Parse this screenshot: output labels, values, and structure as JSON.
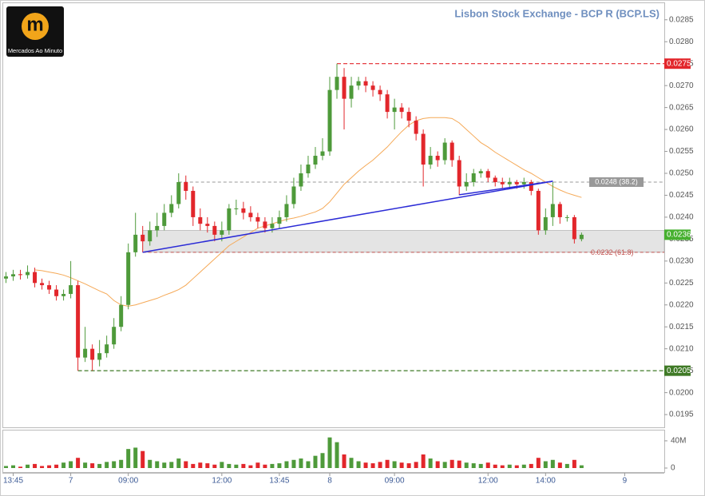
{
  "logo": {
    "letter": "m",
    "text": "Mercados Ao Minuto"
  },
  "chart_data": {
    "type": "candlestick",
    "title": "Lisbon Stock Exchange - BCP R (BCP.LS)",
    "categories": [
      null,
      "13:45",
      null,
      null,
      null,
      null,
      null,
      null,
      null,
      "7",
      null,
      null,
      null,
      null,
      null,
      null,
      null,
      "09:00",
      null,
      null,
      null,
      null,
      null,
      null,
      null,
      null,
      null,
      null,
      null,
      null,
      "12:00",
      null,
      null,
      null,
      null,
      null,
      null,
      null,
      "13:45",
      null,
      null,
      null,
      null,
      null,
      null,
      "8",
      null,
      null,
      null,
      null,
      null,
      null,
      null,
      null,
      "09:00",
      null,
      null,
      null,
      null,
      null,
      null,
      null,
      null,
      null,
      null,
      null,
      null,
      "12:00",
      null,
      null,
      null,
      null,
      null,
      null,
      null,
      "14:00",
      null,
      null,
      null,
      null,
      null,
      null,
      null,
      null,
      null,
      null,
      "9",
      null,
      null,
      null,
      null,
      null
    ],
    "open": [
      0.0226,
      0.02265,
      0.0227,
      0.02268,
      0.02275,
      0.0225,
      0.02245,
      0.02235,
      0.0222,
      0.02225,
      0.02245,
      0.0208,
      0.021,
      0.02075,
      0.0209,
      0.0211,
      0.0215,
      0.022,
      0.0232,
      0.0236,
      0.02345,
      0.0237,
      0.0238,
      0.0241,
      0.0243,
      0.0248,
      0.0246,
      0.024,
      0.02385,
      0.0238,
      0.0236,
      0.0237,
      0.0242,
      0.0242,
      0.0241,
      0.024,
      0.0239,
      0.02375,
      0.02385,
      0.024,
      0.0243,
      0.0247,
      0.025,
      0.0252,
      0.0254,
      0.0255,
      0.0269,
      0.0272,
      0.0267,
      0.027,
      0.0271,
      0.027,
      0.0269,
      0.0268,
      0.0264,
      0.0265,
      0.0264,
      0.0262,
      0.0259,
      0.0252,
      0.0254,
      0.0253,
      0.0257,
      0.0253,
      0.0247,
      0.0248,
      0.025,
      0.02505,
      0.0249,
      0.0248,
      0.02475,
      0.0248,
      0.02475,
      0.0248,
      0.0246,
      0.0237,
      0.024,
      0.0243,
      0.024,
      0.024,
      0.0235,
      null,
      null,
      null,
      null,
      null,
      null,
      null,
      null,
      null,
      null,
      null
    ],
    "high": [
      0.02275,
      0.0228,
      0.0228,
      0.0229,
      0.02285,
      0.0226,
      0.02255,
      0.02245,
      0.02235,
      0.023,
      0.02255,
      0.0215,
      0.0211,
      0.0212,
      0.0213,
      0.0217,
      0.0222,
      0.0234,
      0.0241,
      0.0238,
      0.0239,
      0.0241,
      0.0243,
      0.0245,
      0.025,
      0.02495,
      0.0247,
      0.0242,
      0.024,
      0.0239,
      0.0239,
      0.0243,
      0.0244,
      0.02435,
      0.02425,
      0.0241,
      0.024,
      0.024,
      0.02415,
      0.0245,
      0.0249,
      0.0252,
      0.0254,
      0.0256,
      0.0258,
      0.0272,
      0.0275,
      0.0274,
      0.0272,
      0.0272,
      0.0272,
      0.0271,
      0.027,
      0.0269,
      0.0267,
      0.0266,
      0.0265,
      0.0263,
      0.026,
      0.0256,
      0.0255,
      0.0258,
      0.02575,
      0.0254,
      0.025,
      0.0251,
      0.0251,
      0.0251,
      0.02495,
      0.0249,
      0.0249,
      0.02485,
      0.0249,
      0.02485,
      0.02465,
      0.0242,
      0.0248,
      0.02435,
      0.02405,
      0.02405,
      0.02365,
      null,
      null,
      null,
      null,
      null,
      null,
      null,
      null,
      null,
      null,
      null
    ],
    "low": [
      0.0225,
      0.02255,
      0.02258,
      0.0226,
      0.0224,
      0.02235,
      0.02225,
      0.0221,
      0.0221,
      0.02215,
      0.0205,
      0.0207,
      0.0205,
      0.0206,
      0.0208,
      0.021,
      0.0214,
      0.0219,
      0.0231,
      0.0232,
      0.02335,
      0.02355,
      0.0237,
      0.024,
      0.0242,
      0.0244,
      0.0238,
      0.0237,
      0.02365,
      0.02345,
      0.02345,
      0.0236,
      0.02405,
      0.02395,
      0.0239,
      0.02375,
      0.02365,
      0.02365,
      0.02375,
      0.0239,
      0.0242,
      0.0246,
      0.0249,
      0.0251,
      0.0253,
      0.0254,
      0.0267,
      0.026,
      0.0265,
      0.0269,
      0.02685,
      0.02675,
      0.02665,
      0.02625,
      0.026,
      0.02625,
      0.02605,
      0.02575,
      0.0247,
      0.0251,
      0.02515,
      0.0252,
      0.02515,
      0.0245,
      0.0246,
      0.0247,
      0.0249,
      0.0248,
      0.0247,
      0.02465,
      0.02465,
      0.02465,
      0.02465,
      0.0245,
      0.0236,
      0.0236,
      0.0238,
      0.02385,
      0.0239,
      0.0234,
      0.02345,
      null,
      null,
      null,
      null,
      null,
      null,
      null,
      null,
      null,
      null,
      null
    ],
    "close": [
      0.02265,
      0.0227,
      0.02268,
      0.02275,
      0.0225,
      0.02245,
      0.02235,
      0.0222,
      0.02225,
      0.02245,
      0.0208,
      0.021,
      0.02075,
      0.0209,
      0.0211,
      0.0215,
      0.022,
      0.0232,
      0.0236,
      0.02345,
      0.0237,
      0.0238,
      0.0241,
      0.0243,
      0.0248,
      0.0246,
      0.024,
      0.02385,
      0.0238,
      0.0236,
      0.0237,
      0.0242,
      0.0242,
      0.0241,
      0.024,
      0.0239,
      0.02375,
      0.02385,
      0.024,
      0.0243,
      0.0247,
      0.025,
      0.0252,
      0.0254,
      0.0255,
      0.0269,
      0.0272,
      0.0267,
      0.027,
      0.0271,
      0.027,
      0.0269,
      0.0268,
      0.0264,
      0.0265,
      0.0264,
      0.0262,
      0.0259,
      0.0252,
      0.0254,
      0.0253,
      0.0257,
      0.0253,
      0.0247,
      0.0248,
      0.025,
      0.02505,
      0.0249,
      0.0248,
      0.02475,
      0.0248,
      0.02475,
      0.0248,
      0.0246,
      0.0237,
      0.024,
      0.0243,
      0.024,
      0.024,
      0.0235,
      0.0236,
      null,
      null,
      null,
      null,
      null,
      null,
      null,
      null,
      null,
      null,
      null
    ],
    "up_color": "#4e9a3a",
    "down_color": "#e2262b",
    "moving_average": {
      "color": "#f5a957",
      "values": [
        null,
        null,
        null,
        null,
        0.0228,
        0.02278,
        0.02275,
        0.02272,
        0.02268,
        0.02262,
        0.02255,
        0.02248,
        0.0224,
        0.02232,
        0.02225,
        0.0221,
        0.022,
        0.02197,
        0.022,
        0.02205,
        0.0221,
        0.02215,
        0.02222,
        0.02228,
        0.02235,
        0.02245,
        0.0226,
        0.02275,
        0.0229,
        0.02305,
        0.0232,
        0.02335,
        0.02345,
        0.02355,
        0.02365,
        0.02375,
        0.0238,
        0.02385,
        0.0239,
        0.02395,
        0.02398,
        0.02402,
        0.02407,
        0.02412,
        0.0242,
        0.02435,
        0.02455,
        0.02475,
        0.0249,
        0.02505,
        0.02518,
        0.0253,
        0.02545,
        0.0256,
        0.02578,
        0.02595,
        0.0261,
        0.0262,
        0.02625,
        0.02627,
        0.02627,
        0.02627,
        0.02625,
        0.02615,
        0.026,
        0.02585,
        0.0257,
        0.0256,
        0.02548,
        0.02538,
        0.02528,
        0.02518,
        0.02508,
        0.025,
        0.0249,
        0.0248,
        0.0247,
        0.02462,
        0.02455,
        0.0245,
        0.02445,
        null,
        null,
        null,
        null,
        null,
        null,
        null,
        null,
        null,
        null,
        null
      ]
    },
    "volume": [
      3,
      4,
      2,
      5,
      6,
      3,
      4,
      5,
      8,
      10,
      15,
      8,
      7,
      6,
      9,
      10,
      12,
      28,
      30,
      25,
      12,
      10,
      8,
      9,
      14,
      10,
      6,
      8,
      7,
      5,
      9,
      6,
      5,
      6,
      4,
      8,
      5,
      6,
      7,
      10,
      12,
      14,
      10,
      18,
      22,
      45,
      38,
      20,
      15,
      10,
      8,
      7,
      9,
      12,
      10,
      8,
      7,
      9,
      20,
      14,
      10,
      9,
      12,
      11,
      8,
      7,
      6,
      8,
      5,
      4,
      5,
      4,
      5,
      6,
      15,
      10,
      12,
      8,
      6,
      12,
      4,
      null,
      null,
      null,
      null,
      null,
      null,
      null,
      null,
      null,
      null,
      null
    ],
    "ylim": [
      0.01921,
      0.02886
    ],
    "yticks": [
      0.0195,
      {
        "value": 0.02,
        "label": "0.0200"
      },
      0.0205,
      {
        "value": 0.021,
        "label": "0.0210"
      },
      0.0215,
      {
        "value": 0.022,
        "label": "0.0220"
      },
      0.0225,
      {
        "value": 0.023,
        "label": "0.0230"
      },
      0.0235,
      {
        "value": 0.024,
        "label": "0.0240"
      },
      0.0245,
      {
        "value": 0.025,
        "label": "0.0250"
      },
      0.0255,
      {
        "value": 0.026,
        "label": "0.0260"
      },
      0.0265,
      {
        "value": 0.027,
        "label": "0.0270"
      },
      0.0275,
      {
        "value": 0.028,
        "label": "0.0280"
      },
      0.0285
    ],
    "volume_ylim": [
      0,
      54
    ],
    "volume_yticks": [
      0,
      {
        "value": 40,
        "label": "40M"
      }
    ],
    "axis_levels": [
      {
        "value": 0.0275,
        "label": "0.0275",
        "color": "#e2262b",
        "start": 46
      },
      {
        "value": 0.0205,
        "label": "0.0205",
        "color": "#3f7a26",
        "start": 10
      },
      {
        "value": 0.0236,
        "label": "0.0236",
        "color": "#46b02f"
      }
    ],
    "fib_levels": [
      {
        "value": 0.0248,
        "label": "0.0248 (38.2)",
        "color": "#999999",
        "start": 24
      },
      {
        "value": 0.0232,
        "label": "0.0232 (61.8)",
        "color": "#c0504d",
        "start": 19
      }
    ],
    "band": {
      "from": 0.0232,
      "to": 0.0237,
      "start": 19,
      "color": "#d9d9d9"
    },
    "trend_lines": [
      {
        "x": [
          19,
          76
        ],
        "y": [
          0.0232,
          0.02482
        ],
        "color": "#2b2bd6"
      },
      {
        "x": [
          63,
          76
        ],
        "y": [
          0.02451,
          0.02482
        ],
        "color": "#2b2bd6"
      }
    ]
  }
}
